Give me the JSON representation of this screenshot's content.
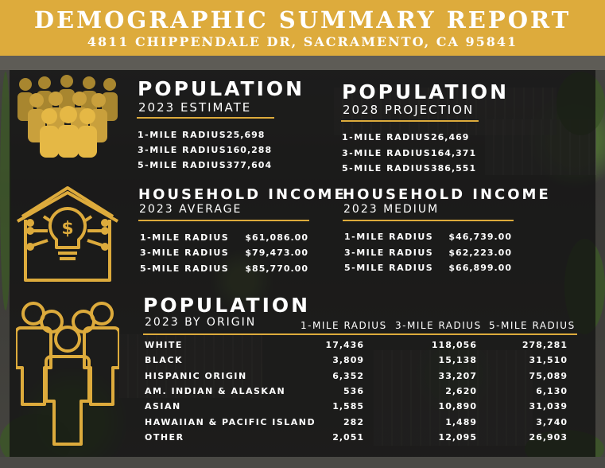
{
  "header": {
    "title": "DEMOGRAPHIC SUMMARY REPORT",
    "address": "4811 CHIPPENDALE DR, SACRAMENTO, CA 95841"
  },
  "colors": {
    "gold": "#ddab3c",
    "panel": "#121212",
    "text": "#ffffff"
  },
  "icons": [
    "crowd-icon",
    "house-lightbulb-dollar-icon",
    "people-group-icon"
  ],
  "population_2023": {
    "title": "POPULATION",
    "subtitle": "2023 ESTIMATE",
    "rows": [
      {
        "label": "1-MILE RADIUS",
        "value": "25,698"
      },
      {
        "label": "3-MILE RADIUS",
        "value": "160,288"
      },
      {
        "label": "5-MILE RADIUS",
        "value": "377,604"
      }
    ]
  },
  "population_2028": {
    "title": "POPULATION",
    "subtitle": "2028 PROJECTION",
    "rows": [
      {
        "label": "1-MILE RADIUS",
        "value": "26,469"
      },
      {
        "label": "3-MILE RADIUS",
        "value": "164,371"
      },
      {
        "label": "5-MILE RADIUS",
        "value": "386,551"
      }
    ]
  },
  "income_average": {
    "title": "HOUSEHOLD INCOME",
    "subtitle": "2023 AVERAGE",
    "rows": [
      {
        "label": "1-MILE RADIUS",
        "value": "$61,086.00"
      },
      {
        "label": "3-MILE RADIUS",
        "value": "$79,473.00"
      },
      {
        "label": "5-MILE RADIUS",
        "value": "$85,770.00"
      }
    ]
  },
  "income_medium": {
    "title": "HOUSEHOLD INCOME",
    "subtitle": "2023 MEDIUM",
    "rows": [
      {
        "label": "1-MILE RADIUS",
        "value": "$46,739.00"
      },
      {
        "label": "3-MILE RADIUS",
        "value": "$62,223.00"
      },
      {
        "label": "5-MILE RADIUS",
        "value": "$66,899.00"
      }
    ]
  },
  "origin": {
    "title": "POPULATION",
    "subtitle": "2023 BY ORIGIN",
    "columns": [
      "1-MILE RADIUS",
      "3-MILE RADIUS",
      "5-MILE RADIUS"
    ],
    "rows": [
      {
        "label": "WHITE",
        "values": [
          "17,436",
          "118,056",
          "278,281"
        ]
      },
      {
        "label": "BLACK",
        "values": [
          "3,809",
          "15,138",
          "31,510"
        ]
      },
      {
        "label": "HISPANIC ORIGIN",
        "values": [
          "6,352",
          "33,207",
          "75,089"
        ]
      },
      {
        "label": "AM. INDIAN & ALASKAN",
        "values": [
          "536",
          "2,620",
          "6,130"
        ]
      },
      {
        "label": "ASIAN",
        "values": [
          "1,585",
          "10,890",
          "31,039"
        ]
      },
      {
        "label": "HAWAIIAN & PACIFIC ISLAND",
        "values": [
          "282",
          "1,489",
          "3,740"
        ]
      },
      {
        "label": "OTHER",
        "values": [
          "2,051",
          "12,095",
          "26,903"
        ]
      }
    ]
  }
}
